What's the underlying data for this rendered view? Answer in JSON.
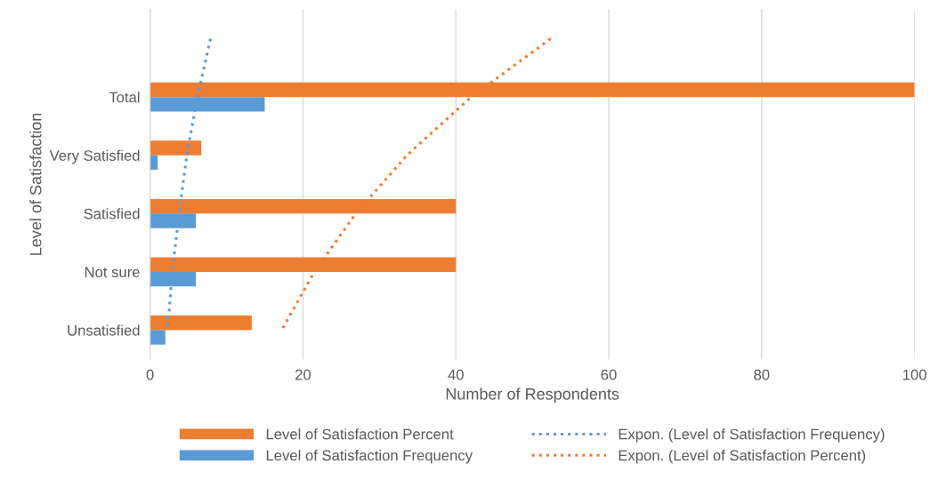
{
  "chart_data": {
    "type": "bar",
    "orientation": "horizontal",
    "xlabel": "Number of Respondents",
    "ylabel": "Level of Satisfaction",
    "categories": [
      null,
      "Total",
      "Very Satisfied",
      "Satisfied",
      "Not sure",
      "Unsatisfied"
    ],
    "series": [
      {
        "name": "Level of Satisfaction Percent",
        "color": "#ed7d31",
        "values": [
          null,
          100,
          6.7,
          40,
          40,
          13.3
        ]
      },
      {
        "name": "Level of Satisfaction Frequency",
        "color": "#5b9bd5",
        "values": [
          null,
          15,
          1,
          6,
          6,
          2
        ]
      },
      {
        "type": "line",
        "line_style": "dotted",
        "name": "Expon. (Level of Satisfaction Frequency)",
        "color": "#5b9bd5",
        "values": [
          7.9,
          6.2,
          4.8,
          3.8,
          2.9,
          2.3
        ]
      },
      {
        "type": "line",
        "line_style": "dotted",
        "name": "Expon. (Level of Satisfaction Percent)",
        "color": "#ed7d31",
        "values": [
          52.4,
          42.0,
          33.6,
          26.9,
          21.5,
          17.2
        ]
      }
    ],
    "xlim": [
      0,
      100
    ],
    "xticks": [
      0,
      20,
      40,
      60,
      80,
      100
    ],
    "grid": "x",
    "legend": "bottom"
  }
}
